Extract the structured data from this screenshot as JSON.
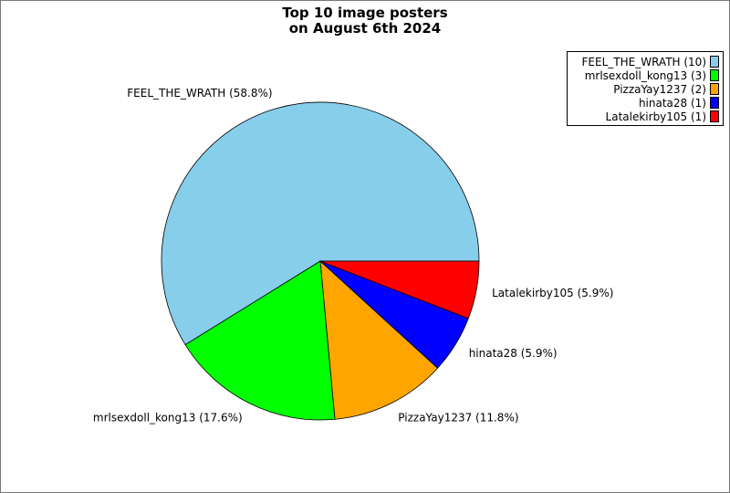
{
  "chart_data": {
    "type": "pie",
    "title_lines": [
      "Top 10 image posters",
      "on August 6th 2024"
    ],
    "slices": [
      {
        "name": "FEEL_THE_WRATH",
        "count": 10,
        "percent_label": "FEEL_THE_WRATH (58.8%)",
        "legend_label": "FEEL_THE_WRATH (10)",
        "color": "#87CEEB"
      },
      {
        "name": "mrlsexdoll_kong13",
        "count": 3,
        "percent_label": "mrlsexdoll_kong13 (17.6%)",
        "legend_label": "mrlsexdoll_kong13 (3)",
        "color": "#00FF00"
      },
      {
        "name": "PizzaYay1237",
        "count": 2,
        "percent_label": "PizzaYay1237 (11.8%)",
        "legend_label": "PizzaYay1237 (2)",
        "color": "#FFA500"
      },
      {
        "name": "hinata28",
        "count": 1,
        "percent_label": "hinata28 (5.9%)",
        "legend_label": "hinata28 (1)",
        "color": "#0000FF"
      },
      {
        "name": "Latalekirby105",
        "count": 1,
        "percent_label": "Latalekirby105 (5.9%)",
        "legend_label": "Latalekirby105 (1)",
        "color": "#FF0000"
      }
    ],
    "legend_position": "top-right"
  }
}
